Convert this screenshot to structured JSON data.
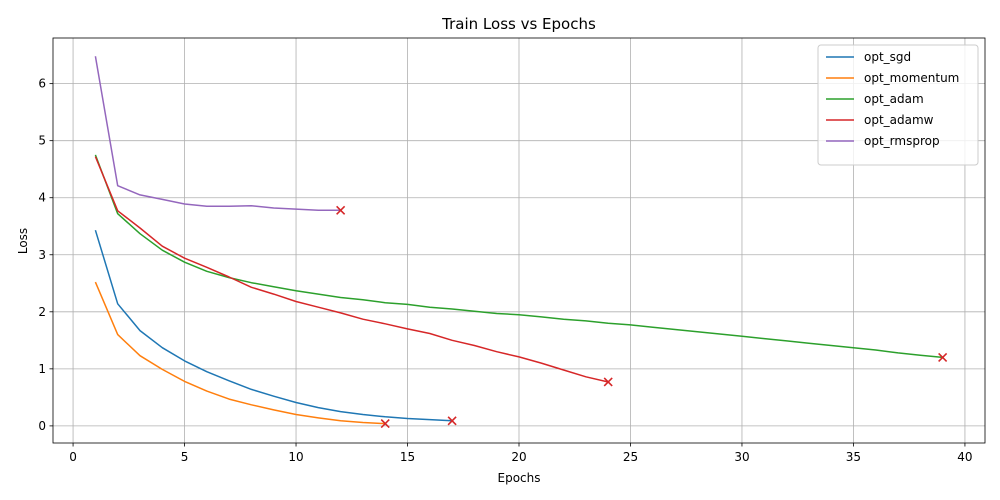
{
  "chart_data": {
    "type": "line",
    "title": "Train Loss vs Epochs",
    "xlabel": "Epochs",
    "ylabel": "Loss",
    "xlim": [
      -0.9,
      40.9
    ],
    "ylim": [
      -0.3,
      6.8
    ],
    "xticks": [
      0,
      5,
      10,
      15,
      20,
      25,
      30,
      35,
      40
    ],
    "yticks": [
      0,
      1,
      2,
      3,
      4,
      5,
      6
    ],
    "grid": true,
    "legend_position": "top-right",
    "end_marker": "x",
    "end_marker_color": "#d62728",
    "series": [
      {
        "name": "opt_sgd",
        "color": "#1f77b4",
        "x": [
          1,
          2,
          3,
          4,
          5,
          6,
          7,
          8,
          9,
          10,
          11,
          12,
          13,
          14,
          15,
          16,
          17
        ],
        "y": [
          3.43,
          2.14,
          1.67,
          1.37,
          1.14,
          0.95,
          0.79,
          0.64,
          0.52,
          0.41,
          0.32,
          0.25,
          0.2,
          0.16,
          0.13,
          0.11,
          0.09
        ]
      },
      {
        "name": "opt_momentum",
        "color": "#ff7f0e",
        "x": [
          1,
          2,
          3,
          4,
          5,
          6,
          7,
          8,
          9,
          10,
          11,
          12,
          13,
          14
        ],
        "y": [
          2.52,
          1.6,
          1.23,
          0.99,
          0.78,
          0.61,
          0.47,
          0.37,
          0.28,
          0.2,
          0.14,
          0.09,
          0.06,
          0.04
        ]
      },
      {
        "name": "opt_adam",
        "color": "#2ca02c",
        "x": [
          1,
          2,
          3,
          4,
          5,
          6,
          7,
          8,
          9,
          10,
          11,
          12,
          13,
          14,
          15,
          16,
          17,
          18,
          19,
          20,
          21,
          22,
          23,
          24,
          25,
          26,
          27,
          28,
          29,
          30,
          31,
          32,
          33,
          34,
          35,
          36,
          37,
          38,
          39
        ],
        "y": [
          4.75,
          3.72,
          3.37,
          3.08,
          2.87,
          2.71,
          2.6,
          2.51,
          2.44,
          2.37,
          2.31,
          2.25,
          2.21,
          2.16,
          2.13,
          2.08,
          2.05,
          2.01,
          1.97,
          1.95,
          1.91,
          1.87,
          1.84,
          1.8,
          1.77,
          1.73,
          1.69,
          1.65,
          1.61,
          1.57,
          1.53,
          1.49,
          1.45,
          1.41,
          1.37,
          1.33,
          1.28,
          1.24,
          1.2
        ]
      },
      {
        "name": "opt_adamw",
        "color": "#d62728",
        "x": [
          1,
          2,
          3,
          4,
          5,
          6,
          7,
          8,
          9,
          10,
          11,
          12,
          13,
          14,
          15,
          16,
          17,
          18,
          19,
          20,
          21,
          22,
          23,
          24
        ],
        "y": [
          4.72,
          3.77,
          3.47,
          3.15,
          2.94,
          2.78,
          2.61,
          2.43,
          2.31,
          2.18,
          2.08,
          1.98,
          1.87,
          1.79,
          1.7,
          1.62,
          1.5,
          1.41,
          1.3,
          1.21,
          1.1,
          0.98,
          0.86,
          0.77
        ]
      },
      {
        "name": "opt_rmsprop",
        "color": "#9467bd",
        "x": [
          1,
          2,
          3,
          4,
          5,
          6,
          7,
          8,
          9,
          10,
          11,
          12
        ],
        "y": [
          6.48,
          4.21,
          4.05,
          3.97,
          3.89,
          3.85,
          3.85,
          3.86,
          3.82,
          3.8,
          3.78,
          3.78
        ]
      }
    ]
  }
}
